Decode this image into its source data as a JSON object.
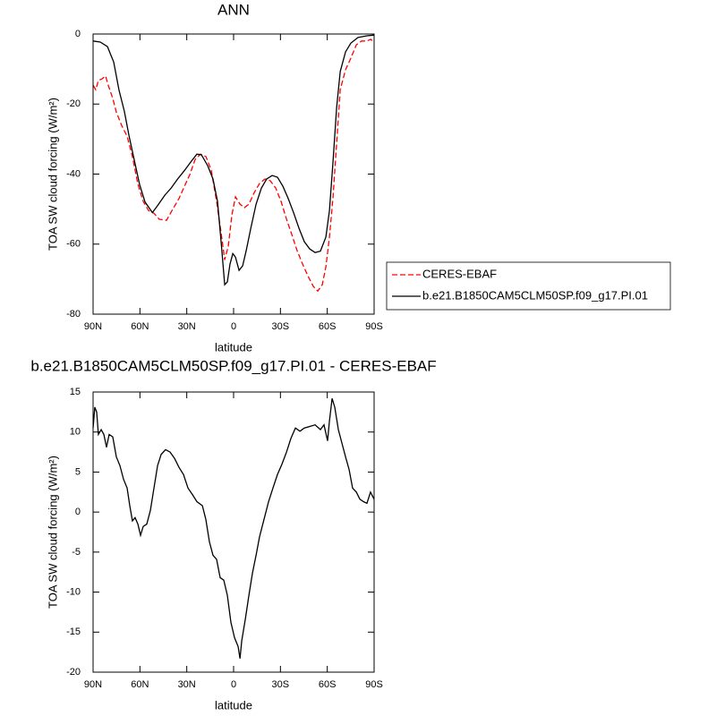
{
  "chart_data": [
    {
      "type": "line",
      "title": "ANN",
      "xlabel": "latitude",
      "ylabel": "TOA SW cloud forcing (W/m²)",
      "xlim": [
        90,
        -90
      ],
      "ylim": [
        -80,
        0
      ],
      "xticks": [
        {
          "value": 90,
          "label": "90N"
        },
        {
          "value": 60,
          "label": "60N"
        },
        {
          "value": 30,
          "label": "30N"
        },
        0,
        {
          "value": -30,
          "label": "30S"
        },
        {
          "value": -60,
          "label": "60S"
        },
        {
          "value": -90,
          "label": "90S"
        }
      ],
      "yticks": [
        -80,
        -60,
        -40,
        -20,
        0
      ],
      "legend": "right",
      "series": [
        {
          "name": "CERES-EBAF",
          "color": "#ff0000",
          "dashed": true,
          "x": [
            90,
            88.3,
            86.6,
            84.3,
            82,
            80.3,
            77.4,
            75.1,
            71.7,
            68.2,
            64.8,
            61.4,
            57.9,
            54.5,
            51,
            47.6,
            43,
            38.4,
            35,
            31.5,
            28.1,
            24.6,
            21.2,
            17.7,
            14.3,
            10.9,
            8,
            5.7,
            3.4,
            1.1,
            -1.2,
            -4.1,
            -6.9,
            -9.8,
            -13.2,
            -16.6,
            -20.1,
            -23.5,
            -27,
            -30.4,
            -33.9,
            -37.3,
            -40.7,
            -44.2,
            -47.6,
            -51.1,
            -53.9,
            -56.8,
            -59.1,
            -61.4,
            -63.7,
            -66,
            -68.3,
            -71.7,
            -75.1,
            -78.6,
            -82,
            -85.4,
            -87.8,
            -90
          ],
          "values": [
            -14.6,
            -15.9,
            -13.3,
            -12.8,
            -12,
            -14.6,
            -18.4,
            -22.3,
            -26.1,
            -29.2,
            -35,
            -42.7,
            -47.8,
            -50.4,
            -51.2,
            -52.9,
            -53.2,
            -49.6,
            -47,
            -43.5,
            -40.2,
            -35.8,
            -34.3,
            -35,
            -38.9,
            -47.8,
            -56.8,
            -64.5,
            -60.6,
            -51.7,
            -46.5,
            -48.6,
            -49.6,
            -48.6,
            -45.3,
            -42.7,
            -41.4,
            -41.9,
            -44,
            -47.8,
            -52.9,
            -57.3,
            -61.9,
            -65.7,
            -69.1,
            -72.1,
            -73.4,
            -71.6,
            -66.5,
            -58,
            -46.5,
            -31.2,
            -15.9,
            -10.2,
            -6.9,
            -3.1,
            -2,
            -2,
            -1.5,
            -2.3
          ]
        },
        {
          "name": "b.e21.B1850CAM5CLM50SP.f09_g17.PI.01",
          "color": "#000000",
          "dashed": false,
          "x": [
            90,
            85.4,
            80.8,
            76.8,
            73.4,
            70,
            67,
            63.6,
            60.2,
            56.7,
            52,
            48.7,
            44,
            40,
            36,
            31.5,
            27,
            23.5,
            20.6,
            16.6,
            13.2,
            10.3,
            8,
            5.7,
            4,
            2.3,
            0.5,
            -1.2,
            -3.5,
            -5.8,
            -8,
            -11,
            -14.4,
            -17.8,
            -21.2,
            -24.7,
            -28.1,
            -31.6,
            -35,
            -38.4,
            -41.9,
            -45.3,
            -48.8,
            -52.2,
            -55.6,
            -59.1,
            -61.4,
            -63.7,
            -66,
            -68.3,
            -71.7,
            -75.1,
            -79.7,
            -85.4,
            -90
          ],
          "values": [
            -2,
            -2.3,
            -3.6,
            -8,
            -16,
            -22,
            -29,
            -36,
            -43,
            -48,
            -51,
            -49,
            -46,
            -44,
            -41.5,
            -39,
            -36.3,
            -34.3,
            -34.5,
            -37.6,
            -41.4,
            -47.8,
            -59.3,
            -71.6,
            -70.8,
            -65.7,
            -62.7,
            -63.7,
            -67.5,
            -66.2,
            -62,
            -55.5,
            -48.6,
            -44,
            -41.4,
            -40.4,
            -40.9,
            -43.5,
            -47,
            -51,
            -55.5,
            -59.3,
            -61.4,
            -62.4,
            -62,
            -58,
            -50.4,
            -36.3,
            -21,
            -10.7,
            -5.1,
            -2.6,
            -1,
            -0.5,
            -0.3
          ]
        }
      ]
    },
    {
      "type": "line",
      "title": "b.e21.B1850CAM5CLM50SP.f09_g17.PI.01 - CERES-EBAF",
      "xlabel": "latitude",
      "ylabel": "TOA SW cloud forcing (W/m²)",
      "xlim": [
        90,
        -90
      ],
      "ylim": [
        -20,
        15
      ],
      "xticks": [
        {
          "value": 90,
          "label": "90N"
        },
        {
          "value": 60,
          "label": "60N"
        },
        {
          "value": 30,
          "label": "30N"
        },
        0,
        {
          "value": -30,
          "label": "30S"
        },
        {
          "value": -60,
          "label": "60S"
        },
        {
          "value": -90,
          "label": "90S"
        }
      ],
      "yticks": [
        -20,
        -15,
        -10,
        -5,
        0,
        5,
        10,
        15
      ],
      "series": [
        {
          "color": "#000000",
          "dashed": false,
          "x": [
            90,
            88.9,
            87.7,
            86.6,
            84.8,
            83.1,
            81.4,
            79.7,
            77.4,
            75.1,
            72.8,
            70.5,
            68.2,
            66.5,
            64.8,
            63.1,
            61.3,
            59.6,
            57.9,
            55.6,
            53.3,
            51,
            48.7,
            46.4,
            43.6,
            40.7,
            37.8,
            35,
            32.1,
            29.2,
            26.4,
            23.5,
            20,
            17.8,
            15.5,
            13.2,
            10.9,
            8.6,
            6.3,
            4,
            1.7,
            -0.6,
            -2.9,
            -4.1,
            -5.2,
            -7.5,
            -9.8,
            -12.1,
            -14.4,
            -16.6,
            -19.5,
            -22.4,
            -25.2,
            -28.1,
            -31,
            -33.9,
            -36.7,
            -39.6,
            -42.5,
            -45.3,
            -48.8,
            -52.2,
            -55.6,
            -57.9,
            -60.2,
            -61.4,
            -63.1,
            -64.8,
            -67.1,
            -69.4,
            -71.7,
            -74,
            -76.2,
            -78.6,
            -80.9,
            -83.2,
            -85.4,
            -87.7,
            -90
          ],
          "values": [
            10.5,
            13.1,
            12.5,
            9.7,
            10.3,
            9.7,
            8.1,
            9.7,
            9.4,
            6.9,
            5.8,
            4.1,
            3,
            0.8,
            -1.1,
            -0.7,
            -1.5,
            -2.9,
            -1.8,
            -1.5,
            0.2,
            3,
            5.8,
            7.2,
            7.8,
            7.5,
            6.7,
            5.6,
            4.7,
            3,
            2.2,
            1.3,
            0.8,
            -0.9,
            -3.7,
            -5.4,
            -5.9,
            -8.2,
            -8.5,
            -10.4,
            -13.8,
            -15.7,
            -16.8,
            -18.3,
            -16.1,
            -13.4,
            -10.4,
            -7.6,
            -5.4,
            -3.1,
            -0.9,
            1.3,
            3,
            4.7,
            6,
            7.5,
            9.2,
            10.5,
            10.1,
            10.5,
            10.7,
            10.9,
            10.3,
            10.9,
            8.9,
            11.4,
            14.2,
            13.1,
            10.3,
            8.6,
            6.9,
            5.3,
            3,
            2.5,
            1.6,
            1.3,
            1.1,
            2.5,
            1.6
          ]
        }
      ]
    }
  ]
}
